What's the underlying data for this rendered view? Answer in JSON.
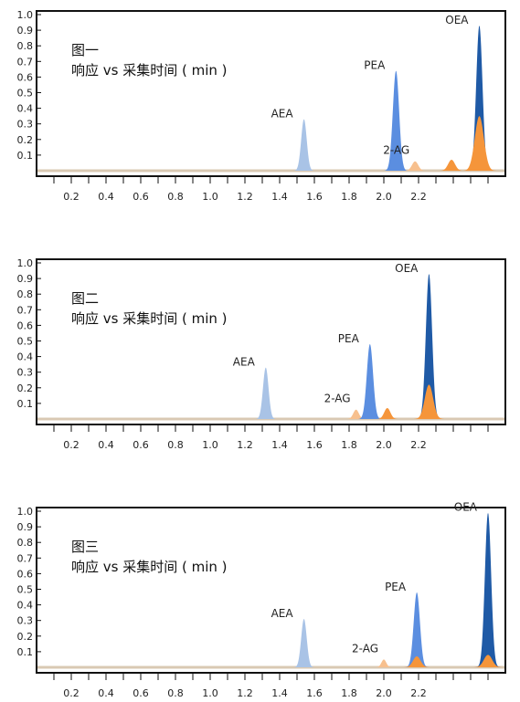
{
  "chart_data": [
    {
      "type": "area",
      "title": "图一",
      "subtitle": "响应 vs 采集时间 ( min )",
      "x_ticks": [
        "0.2",
        "0.4",
        "0.6",
        "0.8",
        "1.0",
        "1.2",
        "1.4",
        "1.6",
        "1.8",
        "2.0",
        "2.2"
      ],
      "y_ticks": [
        "0.1",
        "0.2",
        "0.3",
        "0.4",
        "0.5",
        "0.6",
        "0.7",
        "0.8",
        "0.9",
        "1.0"
      ],
      "xlim": [
        0.0,
        2.7
      ],
      "ylim": [
        0,
        1.0
      ],
      "colors": {
        "light_blue": "#a9c3e6",
        "mid_blue": "#5b8ee0",
        "dark_blue": "#1f5aa6",
        "orange": "#f5953a",
        "light_orange": "#f7c08e"
      },
      "peaks": [
        {
          "label": "AEA",
          "x": 1.54,
          "height": 0.33,
          "width": 0.016,
          "color": "light_blue"
        },
        {
          "label": "PEA",
          "x": 2.07,
          "height": 0.64,
          "width": 0.018,
          "color": "mid_blue"
        },
        {
          "label": "2-AG",
          "x": 2.18,
          "height": 0.06,
          "width": 0.018,
          "color": "light_orange"
        },
        {
          "label": "",
          "x": 2.39,
          "height": 0.07,
          "width": 0.02,
          "color": "orange"
        },
        {
          "label": "OEA",
          "x": 2.55,
          "height": 0.93,
          "width": 0.018,
          "color": "dark_blue"
        },
        {
          "label": "",
          "x": 2.55,
          "height": 0.35,
          "width": 0.026,
          "color": "orange"
        }
      ]
    },
    {
      "type": "area",
      "title": "图二",
      "subtitle": "响应 vs 采集时间 ( min )",
      "x_ticks": [
        "0.2",
        "0.4",
        "0.6",
        "0.8",
        "1.0",
        "1.2",
        "1.4",
        "1.6",
        "1.8",
        "2.0",
        "2.2"
      ],
      "y_ticks": [
        "0.1",
        "0.2",
        "0.3",
        "0.4",
        "0.5",
        "0.6",
        "0.7",
        "0.8",
        "0.9",
        "1.0"
      ],
      "xlim": [
        0.0,
        2.7
      ],
      "ylim": [
        0,
        1.0
      ],
      "colors": {
        "light_blue": "#a9c3e6",
        "mid_blue": "#5b8ee0",
        "dark_blue": "#1f5aa6",
        "orange": "#f5953a",
        "light_orange": "#f7c08e"
      },
      "peaks": [
        {
          "label": "AEA",
          "x": 1.32,
          "height": 0.33,
          "width": 0.016,
          "color": "light_blue"
        },
        {
          "label": "2-AG",
          "x": 1.84,
          "height": 0.06,
          "width": 0.016,
          "color": "light_orange"
        },
        {
          "label": "PEA",
          "x": 1.92,
          "height": 0.48,
          "width": 0.018,
          "color": "mid_blue"
        },
        {
          "label": "",
          "x": 2.02,
          "height": 0.07,
          "width": 0.018,
          "color": "orange"
        },
        {
          "label": "OEA",
          "x": 2.26,
          "height": 0.93,
          "width": 0.018,
          "color": "dark_blue"
        },
        {
          "label": "",
          "x": 2.26,
          "height": 0.22,
          "width": 0.024,
          "color": "orange"
        }
      ]
    },
    {
      "type": "area",
      "title": "图三",
      "subtitle": "响应 vs 采集时间 ( min )",
      "x_ticks": [
        "0.2",
        "0.4",
        "0.6",
        "0.8",
        "1.0",
        "1.2",
        "1.4",
        "1.6",
        "1.8",
        "2.0",
        "2.2"
      ],
      "y_ticks": [
        "0.1",
        "0.2",
        "0.3",
        "0.4",
        "0.5",
        "0.6",
        "0.7",
        "0.8",
        "0.9",
        "1.0"
      ],
      "xlim": [
        0.0,
        2.7
      ],
      "ylim": [
        0,
        1.0
      ],
      "colors": {
        "light_blue": "#a9c3e6",
        "mid_blue": "#5b8ee0",
        "dark_blue": "#1f5aa6",
        "orange": "#f5953a",
        "light_orange": "#f7c08e"
      },
      "peaks": [
        {
          "label": "AEA",
          "x": 1.54,
          "height": 0.31,
          "width": 0.016,
          "color": "light_blue"
        },
        {
          "label": "2-AG",
          "x": 2.0,
          "height": 0.05,
          "width": 0.014,
          "color": "light_orange"
        },
        {
          "label": "PEA",
          "x": 2.19,
          "height": 0.48,
          "width": 0.018,
          "color": "mid_blue"
        },
        {
          "label": "",
          "x": 2.19,
          "height": 0.07,
          "width": 0.022,
          "color": "orange"
        },
        {
          "label": "OEA",
          "x": 2.6,
          "height": 0.99,
          "width": 0.018,
          "color": "dark_blue"
        },
        {
          "label": "",
          "x": 2.6,
          "height": 0.08,
          "width": 0.024,
          "color": "orange"
        }
      ]
    }
  ]
}
